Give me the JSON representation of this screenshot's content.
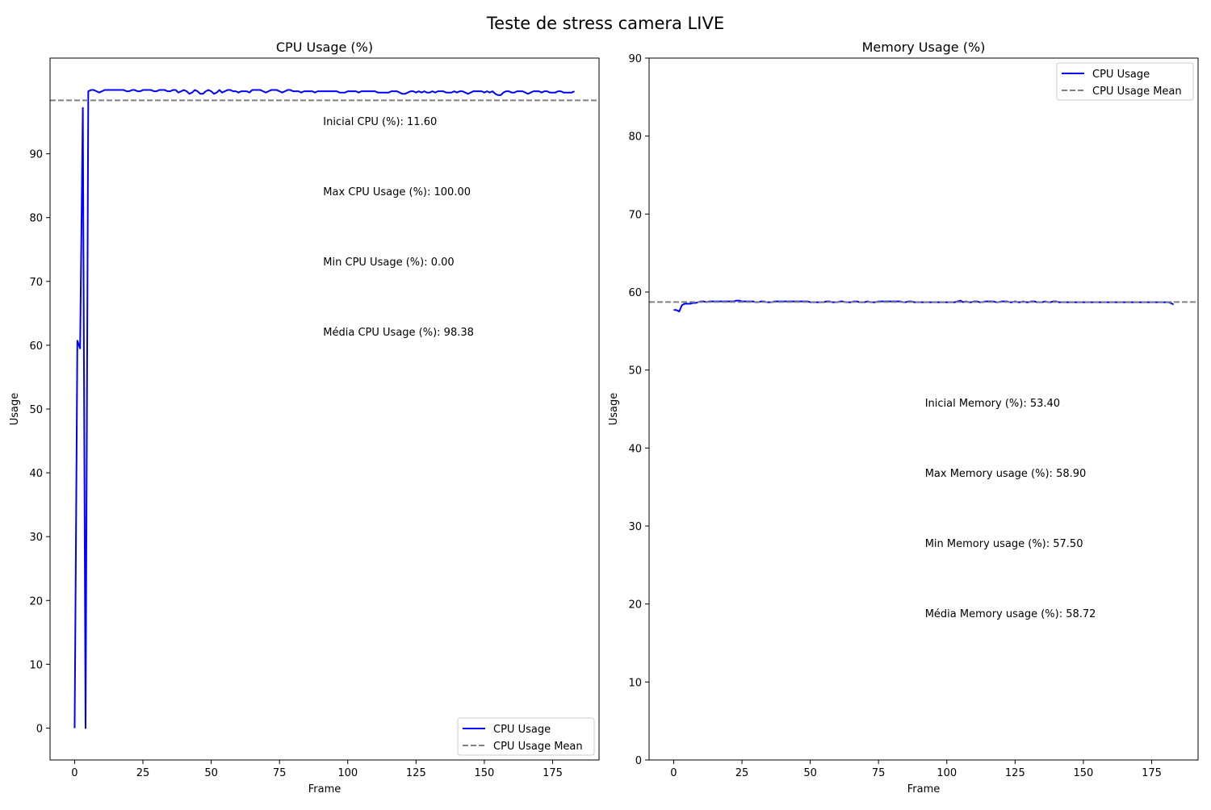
{
  "suptitle": "Teste de stress camera LIVE",
  "chart_data": [
    {
      "type": "line",
      "title": "CPU Usage (%)",
      "xlabel": "Frame",
      "ylabel": "Usage",
      "xlim": [
        -9,
        192
      ],
      "ylim": [
        -5,
        105
      ],
      "xticks": [
        0,
        25,
        50,
        75,
        100,
        125,
        150,
        175
      ],
      "yticks": [
        0,
        10,
        20,
        30,
        40,
        50,
        60,
        70,
        80,
        90
      ],
      "grid": false,
      "legend_loc": "lower right",
      "series": [
        {
          "name": "CPU Usage",
          "color": "#0000ff",
          "style": "solid",
          "x": [
            0,
            1,
            2,
            3,
            4,
            5,
            6,
            7,
            8,
            9,
            10,
            11,
            12,
            13,
            14,
            15,
            16,
            17,
            18,
            19,
            20,
            21,
            22,
            23,
            24,
            25,
            26,
            27,
            28,
            29,
            30,
            31,
            32,
            33,
            34,
            35,
            36,
            37,
            38,
            39,
            40,
            41,
            42,
            43,
            44,
            45,
            46,
            47,
            48,
            49,
            50,
            51,
            52,
            53,
            54,
            55,
            56,
            57,
            58,
            59,
            60,
            61,
            62,
            63,
            64,
            65,
            66,
            67,
            68,
            69,
            70,
            71,
            72,
            73,
            74,
            75,
            76,
            77,
            78,
            79,
            80,
            81,
            82,
            83,
            84,
            85,
            86,
            87,
            88,
            89,
            90,
            91,
            92,
            93,
            94,
            95,
            96,
            97,
            98,
            99,
            100,
            101,
            102,
            103,
            104,
            105,
            106,
            107,
            108,
            109,
            110,
            111,
            112,
            113,
            114,
            115,
            116,
            117,
            118,
            119,
            120,
            121,
            122,
            123,
            124,
            125,
            126,
            127,
            128,
            129,
            130,
            131,
            132,
            133,
            134,
            135,
            136,
            137,
            138,
            139,
            140,
            141,
            142,
            143,
            144,
            145,
            146,
            147,
            148,
            149,
            150,
            151,
            152,
            153,
            154,
            155,
            156,
            157,
            158,
            159,
            160,
            161,
            162,
            163,
            164,
            165,
            166,
            167,
            168,
            169,
            170,
            171,
            172,
            173,
            174,
            175,
            176,
            177,
            178,
            179,
            180,
            181,
            182,
            183
          ],
          "y": [
            0,
            60.7,
            59.5,
            97.2,
            0,
            99.8,
            100,
            100,
            99.8,
            99.6,
            99.8,
            100,
            100,
            100,
            100,
            100,
            100,
            100,
            100,
            99.8,
            99.8,
            100,
            100,
            99.8,
            99.8,
            100,
            100,
            100,
            100,
            99.8,
            99.8,
            100,
            100,
            100,
            99.8,
            99.8,
            100,
            100,
            99.6,
            99.8,
            100,
            99.8,
            99.4,
            99.6,
            100,
            99.8,
            99.4,
            99.4,
            99.8,
            100,
            99.8,
            99.4,
            99.6,
            100,
            99.6,
            99.8,
            100,
            100,
            99.8,
            99.8,
            99.6,
            99.8,
            99.8,
            99.8,
            99.6,
            100,
            100,
            100,
            100,
            99.8,
            99.6,
            99.8,
            100,
            100,
            100,
            99.8,
            99.6,
            99.8,
            100,
            100,
            99.8,
            99.8,
            99.8,
            99.6,
            99.8,
            99.8,
            99.8,
            99.8,
            99.6,
            99.8,
            99.8,
            99.8,
            99.8,
            99.8,
            99.8,
            99.8,
            99.8,
            99.6,
            99.6,
            99.6,
            99.8,
            99.8,
            99.8,
            99.8,
            99.6,
            99.8,
            99.8,
            99.8,
            99.8,
            99.8,
            99.8,
            99.6,
            99.6,
            99.6,
            99.6,
            99.6,
            99.8,
            99.8,
            99.8,
            99.6,
            99.4,
            99.4,
            99.6,
            99.8,
            99.8,
            99.6,
            99.8,
            99.6,
            99.8,
            99.6,
            99.6,
            99.8,
            99.6,
            99.8,
            99.8,
            99.8,
            99.6,
            99.6,
            99.6,
            99.8,
            99.6,
            99.8,
            99.8,
            99.6,
            99.4,
            99.6,
            99.8,
            99.8,
            99.8,
            99.8,
            99.6,
            99.8,
            99.6,
            99.8,
            99.4,
            99.2,
            99.2,
            99.6,
            99.8,
            99.8,
            99.6,
            99.6,
            99.8,
            99.8,
            99.8,
            99.6,
            99.4,
            99.6,
            99.8,
            99.8,
            99.8,
            99.6,
            99.8,
            99.8,
            99.6,
            99.6,
            99.6,
            99.8,
            99.8,
            99.6,
            99.6,
            99.6,
            99.6,
            99.8
          ]
        },
        {
          "name": "CPU Usage Mean",
          "color": "#808080",
          "style": "dashed",
          "hline": 98.38
        }
      ],
      "annotations": [
        {
          "x": 91,
          "y": 94.5,
          "text": "Inicial CPU (%): 11.60"
        },
        {
          "x": 91,
          "y": 83.5,
          "text": "Max CPU Usage (%): 100.00"
        },
        {
          "x": 91,
          "y": 72.5,
          "text": "Min CPU Usage (%): 0.00"
        },
        {
          "x": 91,
          "y": 61.5,
          "text": "Média CPU Usage (%): 98.38"
        }
      ]
    },
    {
      "type": "line",
      "title": "Memory Usage (%)",
      "xlabel": "Frame",
      "ylabel": "Usage",
      "xlim": [
        -9,
        192
      ],
      "ylim": [
        0,
        90
      ],
      "xticks": [
        0,
        25,
        50,
        75,
        100,
        125,
        150,
        175
      ],
      "yticks": [
        0,
        10,
        20,
        30,
        40,
        50,
        60,
        70,
        80,
        90
      ],
      "grid": false,
      "legend_loc": "upper right",
      "series": [
        {
          "name": "CPU Usage",
          "color": "#0000ff",
          "style": "solid",
          "x": [
            0,
            1,
            2,
            3,
            4,
            5,
            6,
            7,
            8,
            9,
            10,
            11,
            12,
            13,
            14,
            15,
            16,
            17,
            18,
            19,
            20,
            21,
            22,
            23,
            24,
            25,
            26,
            27,
            28,
            29,
            30,
            31,
            32,
            33,
            34,
            35,
            36,
            37,
            38,
            39,
            40,
            41,
            42,
            43,
            44,
            45,
            46,
            47,
            48,
            49,
            50,
            51,
            52,
            53,
            54,
            55,
            56,
            57,
            58,
            59,
            60,
            61,
            62,
            63,
            64,
            65,
            66,
            67,
            68,
            69,
            70,
            71,
            72,
            73,
            74,
            75,
            76,
            77,
            78,
            79,
            80,
            81,
            82,
            83,
            84,
            85,
            86,
            87,
            88,
            89,
            90,
            91,
            92,
            93,
            94,
            95,
            96,
            97,
            98,
            99,
            100,
            101,
            102,
            103,
            104,
            105,
            106,
            107,
            108,
            109,
            110,
            111,
            112,
            113,
            114,
            115,
            116,
            117,
            118,
            119,
            120,
            121,
            122,
            123,
            124,
            125,
            126,
            127,
            128,
            129,
            130,
            131,
            132,
            133,
            134,
            135,
            136,
            137,
            138,
            139,
            140,
            141,
            142,
            143,
            144,
            145,
            146,
            147,
            148,
            149,
            150,
            151,
            152,
            153,
            154,
            155,
            156,
            157,
            158,
            159,
            160,
            161,
            162,
            163,
            164,
            165,
            166,
            167,
            168,
            169,
            170,
            171,
            172,
            173,
            174,
            175,
            176,
            177,
            178,
            179,
            180,
            181,
            182,
            183
          ],
          "y": [
            57.7,
            57.7,
            57.5,
            58.3,
            58.5,
            58.5,
            58.5,
            58.6,
            58.6,
            58.7,
            58.8,
            58.8,
            58.7,
            58.8,
            58.8,
            58.8,
            58.8,
            58.8,
            58.8,
            58.8,
            58.8,
            58.8,
            58.8,
            58.9,
            58.9,
            58.8,
            58.8,
            58.8,
            58.8,
            58.8,
            58.7,
            58.7,
            58.8,
            58.8,
            58.7,
            58.7,
            58.7,
            58.8,
            58.8,
            58.8,
            58.8,
            58.8,
            58.8,
            58.8,
            58.8,
            58.8,
            58.8,
            58.8,
            58.8,
            58.8,
            58.7,
            58.7,
            58.7,
            58.7,
            58.7,
            58.7,
            58.8,
            58.8,
            58.7,
            58.7,
            58.7,
            58.8,
            58.8,
            58.7,
            58.7,
            58.7,
            58.8,
            58.8,
            58.7,
            58.7,
            58.7,
            58.8,
            58.7,
            58.7,
            58.7,
            58.8,
            58.8,
            58.8,
            58.8,
            58.8,
            58.8,
            58.8,
            58.8,
            58.8,
            58.7,
            58.7,
            58.8,
            58.8,
            58.7,
            58.7,
            58.7,
            58.7,
            58.7,
            58.7,
            58.7,
            58.7,
            58.7,
            58.7,
            58.7,
            58.7,
            58.7,
            58.7,
            58.7,
            58.7,
            58.8,
            58.9,
            58.7,
            58.8,
            58.7,
            58.7,
            58.8,
            58.8,
            58.7,
            58.7,
            58.8,
            58.8,
            58.8,
            58.8,
            58.7,
            58.7,
            58.8,
            58.8,
            58.8,
            58.7,
            58.7,
            58.8,
            58.7,
            58.7,
            58.8,
            58.7,
            58.7,
            58.8,
            58.8,
            58.7,
            58.7,
            58.7,
            58.8,
            58.7,
            58.7,
            58.8,
            58.8,
            58.7,
            58.7,
            58.7,
            58.7,
            58.7,
            58.7,
            58.7,
            58.7,
            58.7,
            58.7,
            58.7,
            58.7,
            58.7,
            58.7,
            58.7,
            58.7,
            58.7,
            58.7,
            58.7,
            58.7,
            58.7,
            58.7,
            58.7,
            58.7,
            58.7,
            58.7,
            58.7,
            58.7,
            58.7,
            58.7,
            58.7,
            58.7,
            58.7,
            58.7,
            58.7,
            58.7,
            58.7,
            58.7,
            58.7,
            58.7,
            58.7,
            58.6,
            58.4
          ],
          "style_note": ""
        },
        {
          "name": "CPU Usage Mean",
          "color": "#808080",
          "style": "dashed",
          "hline": 58.72
        }
      ],
      "annotations": [
        {
          "x": 92,
          "y": 45.3,
          "text": "Inicial Memory (%): 53.40"
        },
        {
          "x": 92,
          "y": 36.3,
          "text": "Max Memory usage (%): 58.90"
        },
        {
          "x": 92,
          "y": 27.3,
          "text": "Min Memory usage (%): 57.50"
        },
        {
          "x": 92,
          "y": 18.3,
          "text": "Média Memory usage (%): 58.72"
        }
      ]
    }
  ]
}
